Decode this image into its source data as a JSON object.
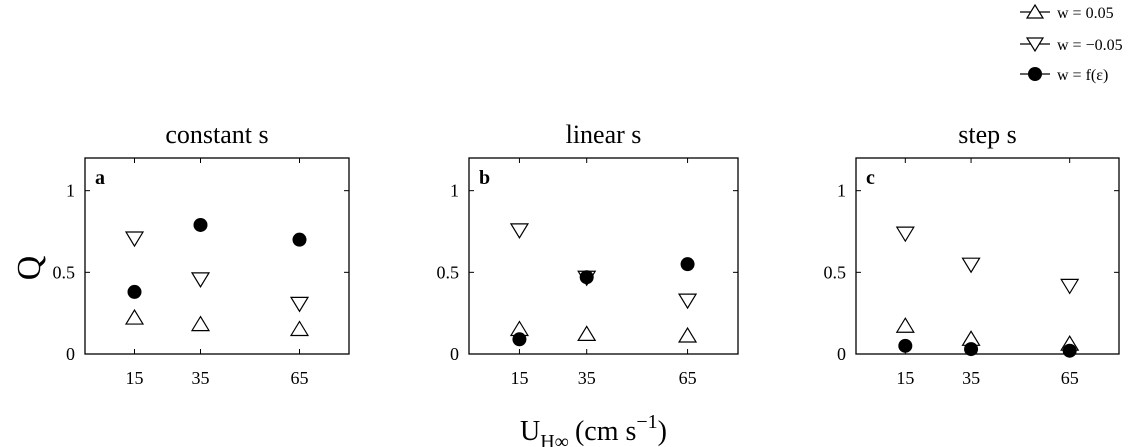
{
  "legend": [
    {
      "marker": "triangle-up",
      "label": "w = 0.05"
    },
    {
      "marker": "triangle-down",
      "label": "w = −0.05"
    },
    {
      "marker": "circle-filled",
      "label": "w = f(ε)"
    }
  ],
  "y_axis_label": "Q",
  "x_axis_label": {
    "main": "U",
    "sub": "H∞",
    "unit": "(cm s",
    "sup": "−1",
    "close": ")"
  },
  "chart_data": [
    {
      "type": "scatter",
      "title": "constant s",
      "panel_letter": "a",
      "x_ticks": [
        15,
        35,
        65
      ],
      "y_ticks": [
        0,
        0.5,
        1
      ],
      "y_tick_labels": [
        "0",
        "0.5",
        "1"
      ],
      "xlim": [
        0,
        80
      ],
      "ylim": [
        0,
        1.2
      ],
      "series": [
        {
          "name": "w = 0.05",
          "marker": "triangle-up",
          "x": [
            15,
            35,
            65
          ],
          "y": [
            0.22,
            0.18,
            0.15
          ]
        },
        {
          "name": "w = −0.05",
          "marker": "triangle-down",
          "x": [
            15,
            35,
            65
          ],
          "y": [
            0.71,
            0.46,
            0.31
          ]
        },
        {
          "name": "w = f(ε)",
          "marker": "circle-filled",
          "x": [
            15,
            35,
            65
          ],
          "y": [
            0.38,
            0.79,
            0.7
          ]
        }
      ]
    },
    {
      "type": "scatter",
      "title": "linear s",
      "panel_letter": "b",
      "x_ticks": [
        15,
        35,
        65
      ],
      "y_ticks": [
        0,
        0.5,
        1
      ],
      "y_tick_labels": [
        "0",
        "0.5",
        "1"
      ],
      "xlim": [
        0,
        80
      ],
      "ylim": [
        0,
        1.2
      ],
      "series": [
        {
          "name": "w = 0.05",
          "marker": "triangle-up",
          "x": [
            15,
            35,
            65
          ],
          "y": [
            0.15,
            0.12,
            0.11
          ]
        },
        {
          "name": "w = −0.05",
          "marker": "triangle-down",
          "x": [
            15,
            35,
            65
          ],
          "y": [
            0.76,
            0.47,
            0.33
          ]
        },
        {
          "name": "w = f(ε)",
          "marker": "circle-filled",
          "x": [
            15,
            35,
            65
          ],
          "y": [
            0.09,
            0.47,
            0.55
          ]
        }
      ]
    },
    {
      "type": "scatter",
      "title": "step s",
      "panel_letter": "c",
      "x_ticks": [
        15,
        35,
        65
      ],
      "y_ticks": [
        0,
        0.5,
        1
      ],
      "y_tick_labels": [
        "0",
        "0.5",
        "1"
      ],
      "xlim": [
        0,
        80
      ],
      "ylim": [
        0,
        1.2
      ],
      "series": [
        {
          "name": "w = 0.05",
          "marker": "triangle-up",
          "x": [
            15,
            35,
            65
          ],
          "y": [
            0.17,
            0.09,
            0.06
          ]
        },
        {
          "name": "w = −0.05",
          "marker": "triangle-down",
          "x": [
            15,
            35,
            65
          ],
          "y": [
            0.74,
            0.55,
            0.42
          ]
        },
        {
          "name": "w = f(ε)",
          "marker": "circle-filled",
          "x": [
            15,
            35,
            65
          ],
          "y": [
            0.05,
            0.03,
            0.02
          ]
        }
      ]
    }
  ]
}
